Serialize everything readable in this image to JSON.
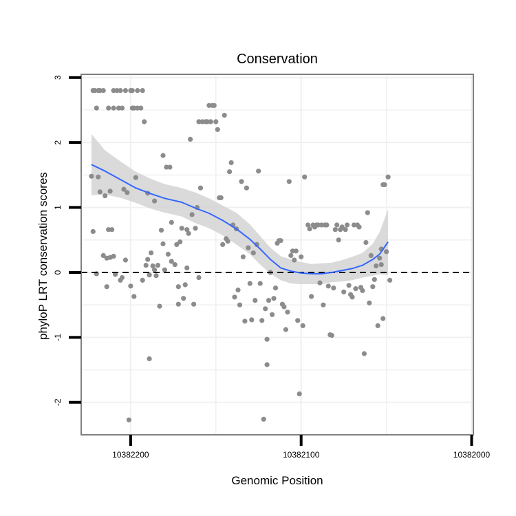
{
  "chart_data": {
    "type": "scatter",
    "title": "Conservation",
    "xlabel": "Genomic Position",
    "ylabel": "phyloP LRT conservation scores",
    "x_reversed": true,
    "xlim": [
      10382229,
      10381999
    ],
    "ylim": [
      -2.5,
      3.05
    ],
    "x_ticks": [
      10382200,
      10382100,
      10382000
    ],
    "x_tick_labels": [
      "10382200",
      "10382100",
      "10382000"
    ],
    "y_ticks": [
      -2,
      -1,
      0,
      1,
      2,
      3
    ],
    "y_tick_labels": [
      "-2",
      "-1",
      "0",
      "1",
      "2",
      "3"
    ],
    "grid": true,
    "reference_line": {
      "y": 0,
      "style": "dashed",
      "color": "#000000"
    },
    "colors": {
      "points": "#8c8c8c",
      "smooth": "#3366ff",
      "ribbon": "#d4d4d4",
      "grid": "#f0f0f0",
      "frame": "#808080"
    },
    "series": [
      {
        "kind": "points",
        "points": [
          [
            10382223,
            1.48
          ],
          [
            10382222,
            0.63
          ],
          [
            10382222,
            2.8
          ],
          [
            10382221,
            2.8
          ],
          [
            10382220,
            2.53
          ],
          [
            10382220,
            -0.02
          ],
          [
            10382219,
            2.8
          ],
          [
            10382219,
            1.47
          ],
          [
            10382218,
            2.8
          ],
          [
            10382218,
            1.24
          ],
          [
            10382216,
            2.8
          ],
          [
            10382216,
            0.26
          ],
          [
            10382215,
            1.18
          ],
          [
            10382214,
            0.22
          ],
          [
            10382214,
            -0.22
          ],
          [
            10382213,
            0.66
          ],
          [
            10382213,
            2.53
          ],
          [
            10382212,
            0.23
          ],
          [
            10382212,
            1.25
          ],
          [
            10382211,
            0.66
          ],
          [
            10382210,
            2.53
          ],
          [
            10382210,
            0.25
          ],
          [
            10382210,
            2.8
          ],
          [
            10382209,
            -0.03
          ],
          [
            10382208,
            2.8
          ],
          [
            10382207,
            2.53
          ],
          [
            10382206,
            -0.12
          ],
          [
            10382206,
            2.8
          ],
          [
            10382205,
            2.53
          ],
          [
            10382205,
            -0.08
          ],
          [
            10382204,
            1.28
          ],
          [
            10382203,
            0.19
          ],
          [
            10382203,
            2.8
          ],
          [
            10382202,
            1.23
          ],
          [
            10382201,
            -2.27
          ],
          [
            10382200,
            2.8
          ],
          [
            10382200,
            -0.21
          ],
          [
            10382199,
            2.53
          ],
          [
            10382199,
            2.8
          ],
          [
            10382198,
            -0.37
          ],
          [
            10382198,
            2.53
          ],
          [
            10382197,
            1.46
          ],
          [
            10382196,
            2.8
          ],
          [
            10382196,
            2.53
          ],
          [
            10382194,
            2.53
          ],
          [
            10382193,
            2.8
          ],
          [
            10382193,
            -0.12
          ],
          [
            10382192,
            2.32
          ],
          [
            10382191,
            0.11
          ],
          [
            10382190,
            0.2
          ],
          [
            10382190,
            1.22
          ],
          [
            10382189,
            -1.33
          ],
          [
            10382189,
            -0.04
          ],
          [
            10382188,
            0.3
          ],
          [
            10382187,
            0.1
          ],
          [
            10382186,
            1.1
          ],
          [
            10382186,
            0.04
          ],
          [
            10382185,
            -0.05
          ],
          [
            10382184,
            0.11
          ],
          [
            10382183,
            -0.52
          ],
          [
            10382182,
            0.65
          ],
          [
            10382181,
            1.8
          ],
          [
            10382181,
            0.44
          ],
          [
            10382180,
            0.04
          ],
          [
            10382179,
            1.62
          ],
          [
            10382178,
            0.28
          ],
          [
            10382177,
            1.62
          ],
          [
            10382176,
            0.77
          ],
          [
            10382176,
            0.17
          ],
          [
            10382174,
            0.12
          ],
          [
            10382173,
            0.43
          ],
          [
            10382172,
            -0.49
          ],
          [
            10382172,
            -0.22
          ],
          [
            10382171,
            0.47
          ],
          [
            10382170,
            0.68
          ],
          [
            10382169,
            -0.4
          ],
          [
            10382168,
            -0.19
          ],
          [
            10382167,
            0.66
          ],
          [
            10382167,
            0.07
          ],
          [
            10382166,
            0.6
          ],
          [
            10382165,
            2.05
          ],
          [
            10382164,
            0.89
          ],
          [
            10382163,
            -0.49
          ],
          [
            10382162,
            0.68
          ],
          [
            10382161,
            1.0
          ],
          [
            10382160,
            -0.08
          ],
          [
            10382160,
            2.32
          ],
          [
            10382159,
            1.3
          ],
          [
            10382158,
            2.32
          ],
          [
            10382156,
            2.32
          ],
          [
            10382155,
            2.32
          ],
          [
            10382154,
            2.57
          ],
          [
            10382153,
            2.32
          ],
          [
            10382152,
            2.57
          ],
          [
            10382151,
            2.57
          ],
          [
            10382150,
            2.32
          ],
          [
            10382149,
            2.2
          ],
          [
            10382148,
            1.15
          ],
          [
            10382147,
            1.15
          ],
          [
            10382146,
            0.43
          ],
          [
            10382145,
            2.42
          ],
          [
            10382144,
            0.52
          ],
          [
            10382143,
            0.48
          ],
          [
            10382142,
            1.55
          ],
          [
            10382141,
            1.69
          ],
          [
            10382140,
            0.73
          ],
          [
            10382139,
            -0.38
          ],
          [
            10382138,
            0.67
          ],
          [
            10382137,
            -0.27
          ],
          [
            10382136,
            -0.5
          ],
          [
            10382135,
            1.4
          ],
          [
            10382134,
            0.24
          ],
          [
            10382133,
            -0.75
          ],
          [
            10382132,
            1.3
          ],
          [
            10382131,
            0.38
          ],
          [
            10382130,
            -0.17
          ],
          [
            10382129,
            -0.73
          ],
          [
            10382128,
            0.3
          ],
          [
            10382127,
            -0.43
          ],
          [
            10382126,
            0.43
          ],
          [
            10382125,
            1.56
          ],
          [
            10382124,
            -0.17
          ],
          [
            10382123,
            -0.74
          ],
          [
            10382122,
            -2.26
          ],
          [
            10382121,
            -0.56
          ],
          [
            10382120,
            -1.42
          ],
          [
            10382120,
            -1.03
          ],
          [
            10382119,
            -0.43
          ],
          [
            10382118,
            0.0
          ],
          [
            10382117,
            -0.65
          ],
          [
            10382116,
            -0.4
          ],
          [
            10382115,
            -0.24
          ],
          [
            10382114,
            0.45
          ],
          [
            10382113,
            0.49
          ],
          [
            10382112,
            0.49
          ],
          [
            10382111,
            -0.49
          ],
          [
            10382110,
            -0.53
          ],
          [
            10382109,
            -0.88
          ],
          [
            10382108,
            -0.61
          ],
          [
            10382107,
            1.4
          ],
          [
            10382106,
            0.26
          ],
          [
            10382105,
            0.33
          ],
          [
            10382104,
            0.19
          ],
          [
            10382103,
            0.33
          ],
          [
            10382102,
            -0.74
          ],
          [
            10382101,
            -1.87
          ],
          [
            10382100,
            0.24
          ],
          [
            10382099,
            -0.82
          ],
          [
            10382098,
            1.47
          ],
          [
            10382096,
            0.73
          ],
          [
            10382095,
            0.67
          ],
          [
            10382094,
            -0.37
          ],
          [
            10382093,
            0.73
          ],
          [
            10382092,
            0.7
          ],
          [
            10382091,
            0.73
          ],
          [
            10382090,
            0.73
          ],
          [
            10382089,
            -0.16
          ],
          [
            10382088,
            0.73
          ],
          [
            10382087,
            -0.5
          ],
          [
            10382086,
            0.73
          ],
          [
            10382085,
            0.73
          ],
          [
            10382084,
            -0.21
          ],
          [
            10382083,
            -0.96
          ],
          [
            10382082,
            -0.97
          ],
          [
            10382081,
            -0.24
          ],
          [
            10382080,
            0.66
          ],
          [
            10382079,
            0.73
          ],
          [
            10382078,
            0.5
          ],
          [
            10382077,
            0.66
          ],
          [
            10382076,
            0.7
          ],
          [
            10382075,
            -0.3
          ],
          [
            10382074,
            0.66
          ],
          [
            10382073,
            0.73
          ],
          [
            10382072,
            -0.2
          ],
          [
            10382071,
            -0.34
          ],
          [
            10382070,
            -0.38
          ],
          [
            10382069,
            0.73
          ],
          [
            10382068,
            -0.25
          ],
          [
            10382067,
            0.73
          ],
          [
            10382066,
            0.7
          ],
          [
            10382065,
            -0.23
          ],
          [
            10382064,
            -0.28
          ],
          [
            10382063,
            -1.25
          ],
          [
            10382062,
            0.46
          ],
          [
            10382061,
            0.92
          ],
          [
            10382060,
            -0.47
          ],
          [
            10382059,
            0.26
          ],
          [
            10382058,
            -0.22
          ],
          [
            10382057,
            -0.11
          ],
          [
            10382056,
            0.1
          ],
          [
            10382055,
            -0.82
          ],
          [
            10382054,
            0.22
          ],
          [
            10382053,
            0.36
          ],
          [
            10382053,
            0.12
          ],
          [
            10382052,
            1.35
          ],
          [
            10382052,
            -0.71
          ],
          [
            10382051,
            1.35
          ],
          [
            10382050,
            0.32
          ],
          [
            10382049,
            1.47
          ],
          [
            10382048,
            -0.12
          ]
        ]
      },
      {
        "kind": "smooth",
        "curve": [
          [
            10382223,
            1.66
          ],
          [
            10382215,
            1.56
          ],
          [
            10382206,
            1.43
          ],
          [
            10382197,
            1.3
          ],
          [
            10382188,
            1.21
          ],
          [
            10382180,
            1.14
          ],
          [
            10382170,
            1.08
          ],
          [
            10382162,
            0.99
          ],
          [
            10382154,
            0.91
          ],
          [
            10382146,
            0.8
          ],
          [
            10382138,
            0.67
          ],
          [
            10382130,
            0.51
          ],
          [
            10382124,
            0.36
          ],
          [
            10382118,
            0.2
          ],
          [
            10382112,
            0.07
          ],
          [
            10382106,
            0.02
          ],
          [
            10382100,
            -0.01
          ],
          [
            10382094,
            -0.02
          ],
          [
            10382088,
            -0.02
          ],
          [
            10382082,
            0.0
          ],
          [
            10382076,
            0.03
          ],
          [
            10382070,
            0.06
          ],
          [
            10382064,
            0.11
          ],
          [
            10382058,
            0.2
          ],
          [
            10382054,
            0.28
          ],
          [
            10382049,
            0.47
          ]
        ],
        "ribbon_upper": [
          [
            10382223,
            2.13
          ],
          [
            10382215,
            1.88
          ],
          [
            10382206,
            1.71
          ],
          [
            10382197,
            1.55
          ],
          [
            10382188,
            1.44
          ],
          [
            10382180,
            1.36
          ],
          [
            10382170,
            1.3
          ],
          [
            10382162,
            1.23
          ],
          [
            10382154,
            1.14
          ],
          [
            10382146,
            1.03
          ],
          [
            10382138,
            0.92
          ],
          [
            10382130,
            0.74
          ],
          [
            10382124,
            0.56
          ],
          [
            10382118,
            0.38
          ],
          [
            10382112,
            0.25
          ],
          [
            10382106,
            0.2
          ],
          [
            10382100,
            0.16
          ],
          [
            10382094,
            0.13
          ],
          [
            10382088,
            0.14
          ],
          [
            10382082,
            0.15
          ],
          [
            10382076,
            0.19
          ],
          [
            10382070,
            0.24
          ],
          [
            10382064,
            0.3
          ],
          [
            10382058,
            0.44
          ],
          [
            10382054,
            0.62
          ],
          [
            10382049,
            0.97
          ]
        ],
        "ribbon_lower": [
          [
            10382223,
            1.19
          ],
          [
            10382215,
            1.2
          ],
          [
            10382206,
            1.15
          ],
          [
            10382197,
            1.07
          ],
          [
            10382188,
            0.98
          ],
          [
            10382180,
            0.92
          ],
          [
            10382170,
            0.86
          ],
          [
            10382162,
            0.76
          ],
          [
            10382154,
            0.68
          ],
          [
            10382146,
            0.57
          ],
          [
            10382138,
            0.43
          ],
          [
            10382130,
            0.28
          ],
          [
            10382124,
            0.12
          ],
          [
            10382118,
            -0.02
          ],
          [
            10382112,
            -0.12
          ],
          [
            10382106,
            -0.17
          ],
          [
            10382100,
            -0.18
          ],
          [
            10382094,
            -0.18
          ],
          [
            10382088,
            -0.18
          ],
          [
            10382082,
            -0.15
          ],
          [
            10382076,
            -0.14
          ],
          [
            10382070,
            -0.12
          ],
          [
            10382064,
            -0.08
          ],
          [
            10382058,
            -0.05
          ],
          [
            10382054,
            -0.03
          ],
          [
            10382049,
            -0.04
          ]
        ]
      }
    ]
  }
}
